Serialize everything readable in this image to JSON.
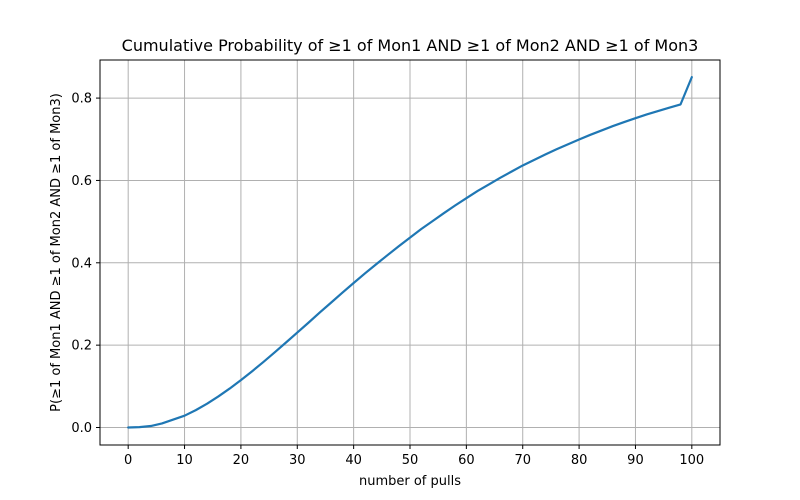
{
  "chart_data": {
    "type": "line",
    "title": "Cumulative Probability of ≥1 of Mon1 AND ≥1 of Mon2 AND ≥1 of Mon3",
    "xlabel": "number of pulls",
    "ylabel": "P(≥1 of Mon1 AND ≥1 of Mon2 AND ≥1 of Mon3)",
    "xlim": [
      -5,
      105
    ],
    "ylim": [
      -0.0425,
      0.8925
    ],
    "xticks": [
      0,
      10,
      20,
      30,
      40,
      50,
      60,
      70,
      80,
      90,
      100
    ],
    "yticks": [
      0.0,
      0.2,
      0.4,
      0.6,
      0.8
    ],
    "xtick_labels": [
      "0",
      "10",
      "20",
      "30",
      "40",
      "50",
      "60",
      "70",
      "80",
      "90",
      "100"
    ],
    "ytick_labels": [
      "0.0",
      "0.2",
      "0.4",
      "0.6",
      "0.8"
    ],
    "grid": true,
    "series": [
      {
        "color": "#1f77b4",
        "x": [
          0,
          2,
          4,
          6,
          8,
          10,
          12,
          14,
          16,
          18,
          20,
          22,
          24,
          26,
          28,
          30,
          32,
          34,
          36,
          38,
          40,
          42,
          44,
          46,
          48,
          50,
          52,
          54,
          56,
          58,
          60,
          62,
          64,
          66,
          68,
          70,
          72,
          74,
          76,
          78,
          80,
          82,
          84,
          86,
          88,
          90,
          92,
          94,
          96,
          98,
          100
        ],
        "y": [
          0.0,
          0.0009,
          0.0036,
          0.0098,
          0.0193,
          0.0287,
          0.0422,
          0.0578,
          0.0755,
          0.0945,
          0.1151,
          0.1367,
          0.1592,
          0.1826,
          0.2064,
          0.2306,
          0.2547,
          0.2795,
          0.3033,
          0.3275,
          0.3509,
          0.3741,
          0.3965,
          0.4185,
          0.4402,
          0.4612,
          0.482,
          0.5011,
          0.5205,
          0.5391,
          0.557,
          0.5745,
          0.5904,
          0.6064,
          0.6214,
          0.6364,
          0.6497,
          0.6629,
          0.6756,
          0.6876,
          0.6994,
          0.7108,
          0.7214,
          0.7321,
          0.7418,
          0.7512,
          0.7603,
          0.7686,
          0.7766,
          0.7847,
          0.8509
        ]
      }
    ]
  }
}
